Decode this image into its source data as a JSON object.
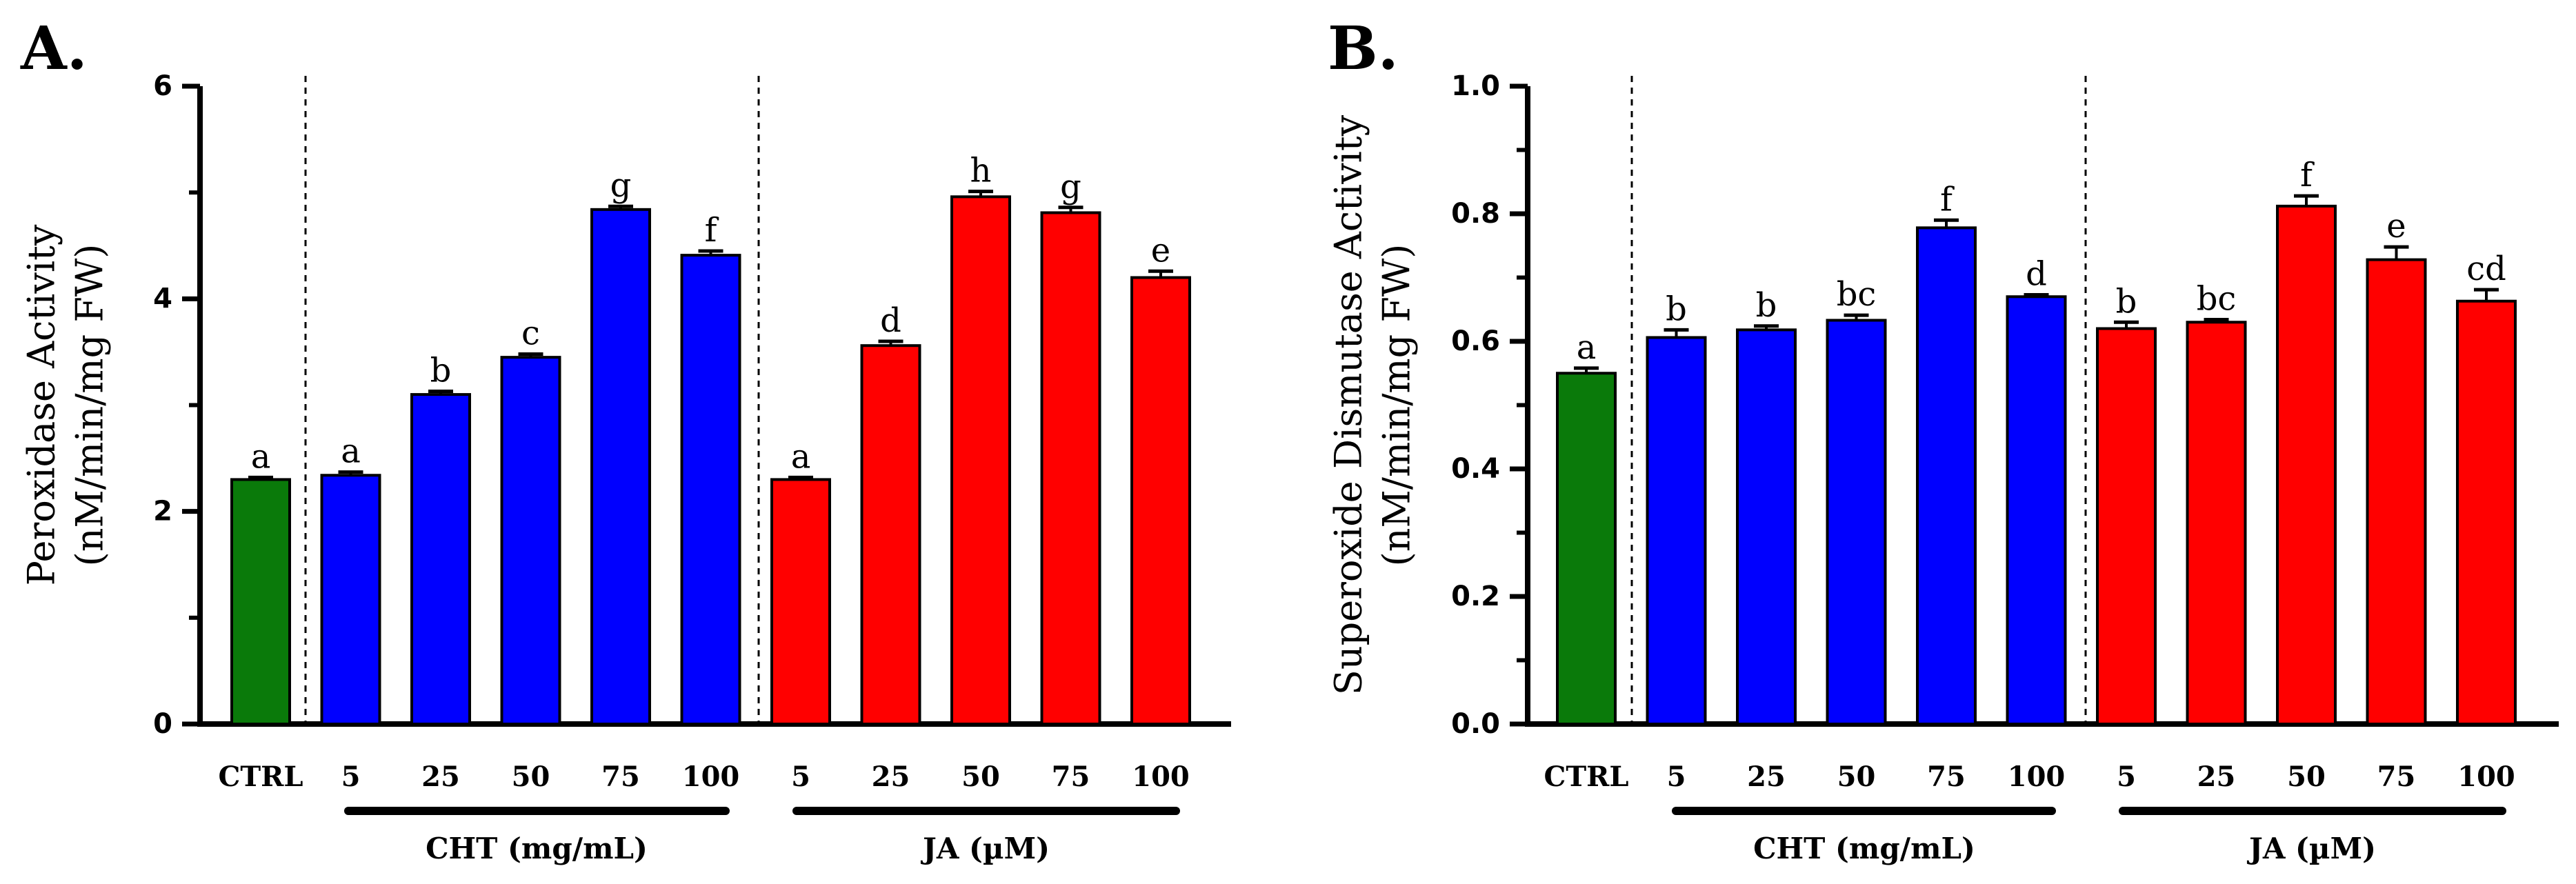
{
  "colors": {
    "ctrl": "#0A7A0A",
    "cht": "#0000FF",
    "ja": "#FF0000",
    "axis": "#000000"
  },
  "chart_data": [
    {
      "type": "bar",
      "panel_label": "A.",
      "ylabel_line1": "Peroxidase Activity",
      "ylabel_line2": "(nM/min/mg FW)",
      "ylim": [
        0,
        6
      ],
      "yticks": [
        0,
        2,
        4,
        6
      ],
      "ytick_labels": [
        "0",
        "2",
        "4",
        "6"
      ],
      "categories": [
        "CTRL",
        "5",
        "25",
        "50",
        "75",
        "100",
        "5",
        "25",
        "50",
        "75",
        "100"
      ],
      "groups": [
        "ctrl",
        "cht",
        "cht",
        "cht",
        "cht",
        "cht",
        "ja",
        "ja",
        "ja",
        "ja",
        "ja"
      ],
      "values": [
        2.3,
        2.34,
        3.1,
        3.45,
        4.84,
        4.41,
        2.3,
        3.56,
        4.96,
        4.81,
        4.2
      ],
      "errors": [
        0.02,
        0.03,
        0.03,
        0.03,
        0.03,
        0.04,
        0.02,
        0.04,
        0.05,
        0.05,
        0.06
      ],
      "letters": [
        "a",
        "a",
        "b",
        "c",
        "g",
        "f",
        "a",
        "d",
        "h",
        "g",
        "e"
      ],
      "group_labels": {
        "cht": "CHT (mg/mL)",
        "ja": "JA (µM)"
      }
    },
    {
      "type": "bar",
      "panel_label": "B.",
      "ylabel_line1": "Superoxide Dismutase Activity",
      "ylabel_line2": "(nM/min/mg FW)",
      "ylim": [
        0,
        1.0
      ],
      "yticks": [
        0,
        0.2,
        0.4,
        0.6,
        0.8,
        1.0
      ],
      "ytick_labels": [
        "0.0",
        "0.2",
        "0.4",
        "0.6",
        "0.8",
        "1.0"
      ],
      "categories": [
        "CTRL",
        "5",
        "25",
        "50",
        "75",
        "100",
        "5",
        "25",
        "50",
        "75",
        "100"
      ],
      "groups": [
        "ctrl",
        "cht",
        "cht",
        "cht",
        "cht",
        "cht",
        "ja",
        "ja",
        "ja",
        "ja",
        "ja"
      ],
      "values": [
        0.55,
        0.606,
        0.618,
        0.633,
        0.778,
        0.67,
        0.62,
        0.63,
        0.812,
        0.728,
        0.663
      ],
      "errors": [
        0.008,
        0.012,
        0.006,
        0.008,
        0.012,
        0.003,
        0.01,
        0.004,
        0.016,
        0.02,
        0.018
      ],
      "letters": [
        "a",
        "b",
        "b",
        "bc",
        "f",
        "d",
        "b",
        "bc",
        "f",
        "e",
        "cd"
      ],
      "group_labels": {
        "cht": "CHT (mg/mL)",
        "ja": "JA (µM)"
      }
    }
  ]
}
